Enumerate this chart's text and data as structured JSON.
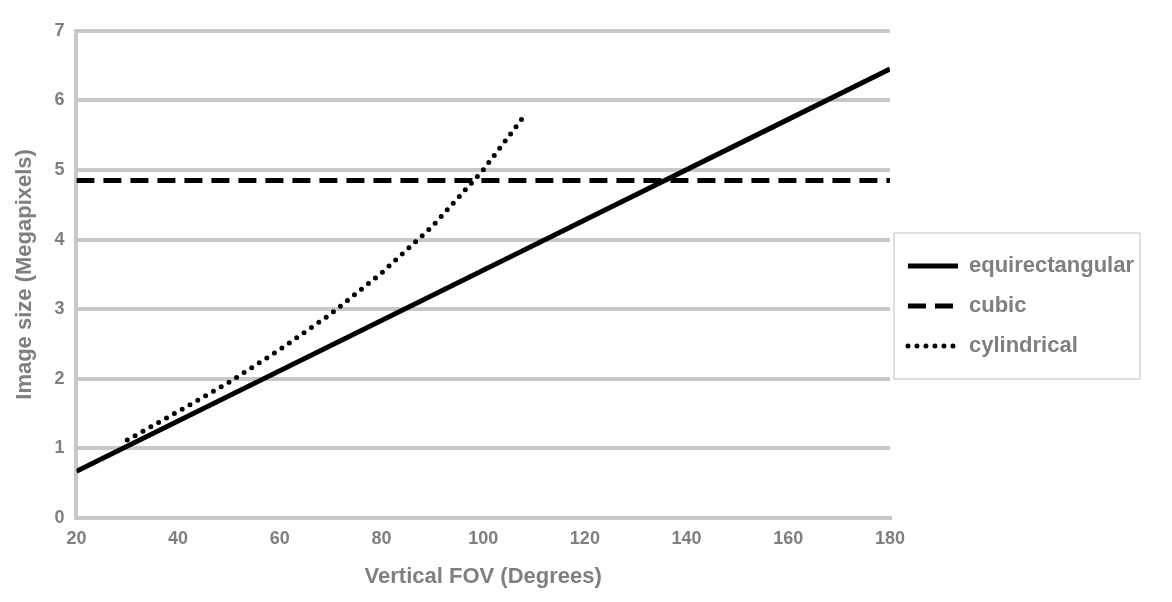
{
  "chart_data": {
    "type": "line",
    "xlabel": "Vertical FOV (Degrees)",
    "ylabel": "Image size (Megapixels)",
    "xlim": [
      20,
      180
    ],
    "xticks": [
      20,
      40,
      60,
      80,
      100,
      120,
      140,
      160,
      180
    ],
    "ylim": [
      0,
      7
    ],
    "yticks": [
      0,
      1,
      2,
      3,
      4,
      5,
      6,
      7
    ],
    "grid": "y",
    "legend": "right",
    "marker": "none",
    "series": [
      {
        "name": "equirectangular",
        "color": "#000000",
        "line_style": "solid",
        "x": [
          20,
          180
        ],
        "values": [
          0.67,
          6.45
        ]
      },
      {
        "name": "cubic",
        "color": "#000000",
        "line_style": "dashed",
        "x": [
          20,
          180
        ],
        "values": [
          4.85,
          4.85
        ]
      },
      {
        "name": "cylindrical",
        "color": "#000000",
        "line_style": "dotted",
        "x": [
          30,
          40,
          50,
          60,
          70,
          80,
          90,
          100,
          108
        ],
        "values": [
          1.12,
          1.53,
          1.95,
          2.42,
          2.93,
          3.52,
          4.19,
          5.0,
          5.77
        ]
      }
    ]
  }
}
